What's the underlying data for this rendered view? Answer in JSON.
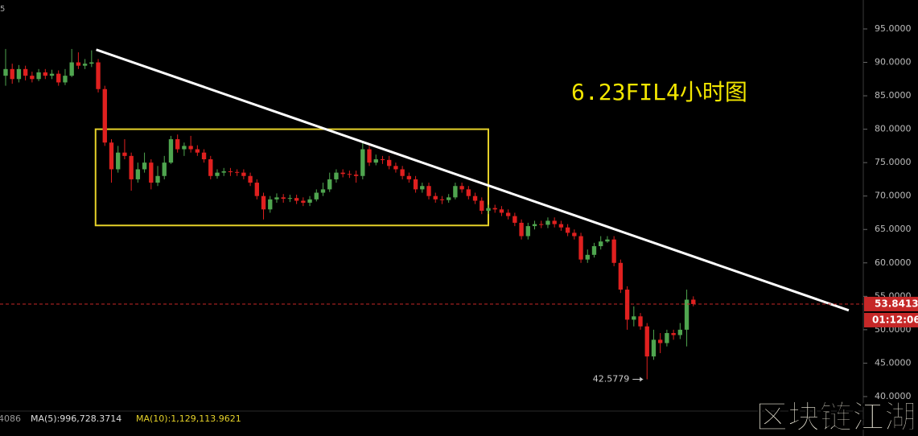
{
  "chart_data": {
    "type": "candlestick",
    "corner_label": "5",
    "title": "6.23FIL4小时图",
    "countdown": "01:12:06",
    "indicators": [
      "4086",
      "MA(5):996,728.3714",
      "MA(10):1,129,113.9621"
    ],
    "watermark": "区块链江湖",
    "up_color": "#4fa54f",
    "down_color": "#e0201f",
    "trendline_color": "#ffffff",
    "box_color": "#e6d229",
    "title_color": "#f2e600",
    "price_line_color": "#c62828",
    "open": [
      88,
      89,
      87.5,
      89,
      88,
      87.5,
      88.5,
      88,
      88.3,
      87,
      88,
      90,
      89.5,
      89.8,
      90,
      86,
      78,
      74,
      76.5,
      76,
      72.5,
      74,
      75,
      72,
      73,
      75,
      78.5,
      77,
      77.5,
      77,
      76.5,
      75.5,
      73,
      73.5,
      73.7,
      73.6,
      73.5,
      73,
      72,
      70,
      68,
      69.5,
      69.8,
      69.6,
      69.7,
      69.3,
      69,
      69.5,
      70.5,
      71,
      72.5,
      73.5,
      73.3,
      73.2,
      73,
      77,
      75,
      75.5,
      75.4,
      74.5,
      74,
      73,
      72.5,
      71,
      71.5,
      70,
      69.5,
      69.4,
      69.8,
      71.5,
      71,
      70,
      69.3,
      67.8,
      68.2,
      68,
      67.5,
      67,
      66,
      64,
      65.5,
      65.8,
      65.7,
      66.3,
      65.8,
      65.3,
      64.5,
      64,
      60.5,
      61.2,
      62.5,
      63.2,
      63.5,
      60,
      56,
      51.5,
      52,
      50.5,
      46,
      48.5,
      48,
      49.5,
      49.2,
      50,
      54.5
    ],
    "close": [
      89,
      87.5,
      89,
      88,
      87.5,
      88.5,
      88,
      88.3,
      87,
      88,
      90,
      89.5,
      89.8,
      90,
      86,
      78,
      74,
      76.5,
      76,
      72.5,
      74,
      75,
      72,
      73,
      75,
      78.5,
      77,
      77.5,
      77,
      76.5,
      75.5,
      73,
      73.5,
      73.7,
      73.6,
      73.5,
      73,
      72,
      70,
      68,
      69.5,
      69.8,
      69.6,
      69.7,
      69.3,
      69,
      69.5,
      70.5,
      71,
      72.5,
      73.5,
      73.3,
      73.2,
      73,
      77,
      75,
      75.5,
      75.4,
      74.5,
      74,
      73,
      72.5,
      71,
      71.5,
      70,
      69.5,
      69.4,
      69.8,
      71.5,
      71,
      70,
      69.3,
      67.8,
      68.2,
      68,
      67.5,
      67,
      66,
      64,
      65.5,
      65.8,
      65.7,
      66.3,
      65.8,
      65.3,
      64.5,
      64,
      60.5,
      61.2,
      62.5,
      63.2,
      63.5,
      60,
      56,
      51.5,
      52,
      50.5,
      46,
      48.5,
      48,
      49.5,
      49.2,
      50,
      54.5,
      53.8413
    ],
    "high": [
      92,
      89.8,
      89.6,
      89.5,
      88.6,
      89,
      89,
      88.9,
      88.8,
      89,
      92,
      91.5,
      90.5,
      91.8,
      90.5,
      86.5,
      78.5,
      77.5,
      78.5,
      76.5,
      75,
      76.5,
      75.5,
      74.5,
      76,
      79,
      79.2,
      78,
      79,
      77.6,
      77,
      76,
      74,
      74.2,
      74.2,
      74,
      74,
      73.5,
      72.5,
      70.5,
      70,
      70.4,
      70.3,
      70.2,
      70.2,
      69.8,
      70,
      71,
      72,
      73.5,
      74,
      74,
      73.8,
      73.8,
      78,
      77.5,
      76.2,
      76,
      76,
      75,
      74.5,
      73.5,
      73,
      72,
      72,
      70.5,
      70,
      70.3,
      72,
      72,
      71.5,
      70.5,
      69.8,
      68.7,
      68.7,
      68.5,
      68,
      67.5,
      66.5,
      66,
      66.3,
      66.3,
      66.8,
      66.8,
      66.3,
      65.8,
      65,
      64.5,
      62,
      63,
      64,
      64,
      64,
      60.5,
      56.5,
      53.5,
      52.5,
      51,
      50,
      49.5,
      50,
      50,
      51,
      56,
      55
    ],
    "low": [
      86.5,
      86.8,
      87,
      87.3,
      87,
      87.2,
      87.5,
      87.5,
      86.5,
      86.6,
      87.8,
      89,
      89,
      89.3,
      85.5,
      77.5,
      72,
      73.5,
      75.5,
      70.8,
      72,
      73.5,
      71,
      71.5,
      72.5,
      74.8,
      76.5,
      76,
      76.5,
      76,
      75,
      72.5,
      72.6,
      73,
      73,
      73,
      72.5,
      71.5,
      69.5,
      66.5,
      67.5,
      69,
      69,
      69.1,
      68.8,
      68.5,
      68.5,
      69.2,
      70,
      70.6,
      72,
      72.8,
      72.7,
      72,
      72.5,
      74.5,
      74.6,
      74.8,
      74,
      73.5,
      72.5,
      72,
      70.5,
      70.5,
      69.5,
      69,
      68.8,
      69,
      69.5,
      70.5,
      69.5,
      68.8,
      67.3,
      67.3,
      67.5,
      67,
      66.5,
      65.5,
      63.5,
      63.5,
      65,
      65.2,
      65.2,
      65.3,
      64.8,
      64,
      63.5,
      60,
      60,
      60.8,
      62,
      63,
      59.5,
      55.5,
      50,
      50.5,
      50,
      42.5779,
      45.5,
      46.5,
      47.5,
      48.5,
      48.6,
      47.5,
      53.5
    ],
    "xlim": [
      -0.85,
      129.7
    ],
    "ylim": [
      37.95,
      99.33
    ],
    "yticks": [
      {
        "value": 40,
        "label": "40.0000"
      },
      {
        "value": 45,
        "label": "45.0000"
      },
      {
        "value": 50,
        "label": "50.0000"
      },
      {
        "value": 55,
        "label": "55.0000"
      },
      {
        "value": 60,
        "label": "60.0000"
      },
      {
        "value": 65,
        "label": "65.0000"
      },
      {
        "value": 70,
        "label": "70.0000"
      },
      {
        "value": 75,
        "label": "75.0000"
      },
      {
        "value": 80,
        "label": "80.0000"
      },
      {
        "value": 85,
        "label": "85.0000"
      },
      {
        "value": 90,
        "label": "90.0000"
      },
      {
        "value": 95,
        "label": "95.0000"
      }
    ],
    "trendline": {
      "x": [
        13.7,
        127.5
      ],
      "y": [
        91.9,
        52.9
      ]
    },
    "box": {
      "x": [
        13.6,
        73
      ],
      "y": [
        65.6,
        80
      ]
    },
    "min_marker": 97
  }
}
